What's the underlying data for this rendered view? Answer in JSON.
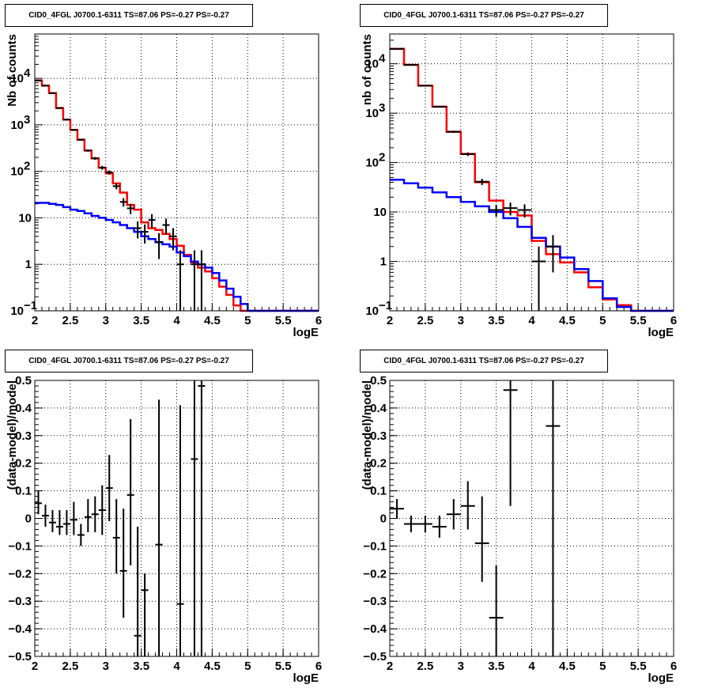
{
  "chart_data": [
    {
      "id": "p1",
      "type": "line",
      "title": "CID0_4FGL J0700.1-6311 TS=87.06 PS=-0.27 PS=-0.27",
      "xlabel": "logE",
      "ylabel": "Nb of counts",
      "xlim": [
        2,
        6
      ],
      "ylim": [
        0.1,
        90000
      ],
      "yscale": "log",
      "grid": true,
      "xticks": [
        "2",
        "2.5",
        "3",
        "3.5",
        "4",
        "4.5",
        "5",
        "5.5",
        "6"
      ],
      "yticks": [
        {
          "v": 0.1,
          "label": "10",
          "exp": "−1"
        },
        {
          "v": 1,
          "label": "1",
          "exp": ""
        },
        {
          "v": 10,
          "label": "10",
          "exp": ""
        },
        {
          "v": 100,
          "label": "10",
          "exp": "2"
        },
        {
          "v": 1000,
          "label": "10",
          "exp": "3"
        },
        {
          "v": 10000,
          "label": "10",
          "exp": "4"
        }
      ],
      "series": [
        {
          "kind": "step",
          "color": "#ff0000",
          "edges": [
            2.0,
            2.1,
            2.2,
            2.3,
            2.4,
            2.5,
            2.6,
            2.7,
            2.8,
            2.9,
            3.0,
            3.1,
            3.2,
            3.3,
            3.4,
            3.5,
            3.6,
            3.7,
            3.8,
            3.9,
            4.0,
            4.1,
            4.2,
            4.3,
            4.4,
            4.5,
            4.6,
            4.7,
            4.8,
            4.9,
            5.0,
            5.1,
            5.2,
            5.3,
            5.4,
            5.5,
            5.6,
            5.7,
            5.8,
            5.9,
            6.0
          ],
          "values": [
            9000,
            7000,
            4800,
            2300,
            1300,
            780,
            480,
            280,
            190,
            120,
            90,
            55,
            35,
            19,
            15,
            8,
            6,
            5.5,
            4.5,
            3.5,
            2.5,
            1.6,
            1.1,
            0.85,
            0.7,
            0.5,
            0.33,
            0.22,
            0.13,
            0.1,
            0.1,
            0.1,
            0.1,
            0.1,
            0.1,
            0.1,
            0.1,
            0.1,
            0.1,
            0.1
          ]
        },
        {
          "kind": "step",
          "color": "#0000ff",
          "edges": [
            2.0,
            2.1,
            2.2,
            2.3,
            2.4,
            2.5,
            2.6,
            2.7,
            2.8,
            2.9,
            3.0,
            3.1,
            3.2,
            3.3,
            3.4,
            3.5,
            3.6,
            3.7,
            3.8,
            3.9,
            4.0,
            4.1,
            4.2,
            4.3,
            4.4,
            4.5,
            4.6,
            4.7,
            4.8,
            4.9,
            5.0,
            5.1,
            5.2,
            5.3,
            5.4,
            5.5,
            5.6,
            5.7,
            5.8,
            5.9,
            6.0
          ],
          "values": [
            21,
            21,
            20,
            19,
            17,
            15,
            14,
            12.5,
            11,
            10,
            9,
            8,
            7,
            6,
            5,
            4,
            3.5,
            3,
            2.7,
            2.4,
            1.8,
            1.5,
            1.15,
            1,
            0.85,
            0.65,
            0.45,
            0.3,
            0.2,
            0.14,
            0.1,
            0.1,
            0.1,
            0.1,
            0.1,
            0.1,
            0.1,
            0.1,
            0.1,
            0.1
          ]
        },
        {
          "kind": "points",
          "color": "#000000",
          "xerr": 0.05,
          "points": [
            {
              "x": 2.05,
              "y": 9000,
              "lo": 8900,
              "hi": 9100
            },
            {
              "x": 2.15,
              "y": 7000,
              "lo": 6900,
              "hi": 7100
            },
            {
              "x": 2.25,
              "y": 4800,
              "lo": 4700,
              "hi": 4900
            },
            {
              "x": 2.35,
              "y": 2300,
              "lo": 2250,
              "hi": 2350
            },
            {
              "x": 2.45,
              "y": 1300,
              "lo": 1260,
              "hi": 1340
            },
            {
              "x": 2.55,
              "y": 780,
              "lo": 750,
              "hi": 810
            },
            {
              "x": 2.65,
              "y": 480,
              "lo": 460,
              "hi": 500
            },
            {
              "x": 2.75,
              "y": 280,
              "lo": 265,
              "hi": 295
            },
            {
              "x": 2.85,
              "y": 190,
              "lo": 176,
              "hi": 204
            },
            {
              "x": 2.95,
              "y": 120,
              "lo": 109,
              "hi": 131
            },
            {
              "x": 3.05,
              "y": 95,
              "lo": 85,
              "hi": 105
            },
            {
              "x": 3.15,
              "y": 48,
              "lo": 41,
              "hi": 55
            },
            {
              "x": 3.25,
              "y": 22,
              "lo": 17.5,
              "hi": 26.5
            },
            {
              "x": 3.35,
              "y": 16,
              "lo": 12,
              "hi": 20
            },
            {
              "x": 3.45,
              "y": 6,
              "lo": 3.6,
              "hi": 8.4
            },
            {
              "x": 3.55,
              "y": 5,
              "lo": 2.8,
              "hi": 7.2
            },
            {
              "x": 3.65,
              "y": 9,
              "lo": 6,
              "hi": 12
            },
            {
              "x": 3.75,
              "y": 3,
              "lo": 1.3,
              "hi": 4.7
            },
            {
              "x": 3.85,
              "y": 7,
              "lo": 4.4,
              "hi": 9.6
            },
            {
              "x": 3.95,
              "y": 4,
              "lo": 2,
              "hi": 6
            },
            {
              "x": 4.05,
              "y": 1,
              "lo": 0.1,
              "hi": 2
            },
            {
              "x": 4.25,
              "y": 1,
              "lo": 0.1,
              "hi": 2
            },
            {
              "x": 4.35,
              "y": 1,
              "lo": 0.1,
              "hi": 2
            }
          ]
        }
      ]
    },
    {
      "id": "p2",
      "type": "line",
      "title": "CID0_4FGL J0700.1-6311 TS=87.06 PS=-0.27 PS=-0.27",
      "xlabel": "logE",
      "ylabel": "nb of counts",
      "xlim": [
        2,
        6
      ],
      "ylim": [
        0.1,
        40000
      ],
      "yscale": "log",
      "grid": true,
      "xticks": [
        "2",
        "2.5",
        "3",
        "3.5",
        "4",
        "4.5",
        "5",
        "5.5",
        "6"
      ],
      "yticks": [
        {
          "v": 0.1,
          "label": "10",
          "exp": "−1"
        },
        {
          "v": 1,
          "label": "1",
          "exp": ""
        },
        {
          "v": 10,
          "label": "10",
          "exp": ""
        },
        {
          "v": 100,
          "label": "10",
          "exp": "2"
        },
        {
          "v": 1000,
          "label": "10",
          "exp": "3"
        },
        {
          "v": 10000,
          "label": "10",
          "exp": "4"
        }
      ],
      "series": [
        {
          "kind": "step",
          "color": "#ff0000",
          "edges": [
            2.0,
            2.2,
            2.4,
            2.6,
            2.8,
            3.0,
            3.2,
            3.4,
            3.6,
            3.8,
            4.0,
            4.2,
            4.4,
            4.6,
            4.8,
            5.0,
            5.2,
            5.4,
            5.6,
            5.8,
            6.0
          ],
          "values": [
            20000,
            9500,
            3600,
            1350,
            420,
            150,
            40,
            17,
            10,
            8.5,
            2.6,
            1.4,
            0.95,
            0.6,
            0.3,
            0.17,
            0.13,
            0.1,
            0.1,
            0.1
          ]
        },
        {
          "kind": "step",
          "color": "#0000ff",
          "edges": [
            2.0,
            2.2,
            2.4,
            2.6,
            2.8,
            3.0,
            3.2,
            3.4,
            3.6,
            3.8,
            4.0,
            4.2,
            4.4,
            4.6,
            4.8,
            5.0,
            5.2,
            5.4,
            5.6,
            5.8,
            6.0
          ],
          "values": [
            45,
            38,
            31,
            25,
            20,
            16,
            13,
            10,
            7.5,
            5,
            3,
            2,
            1.2,
            0.7,
            0.4,
            0.18,
            0.12,
            0.1,
            0.1,
            0.1
          ]
        },
        {
          "kind": "points",
          "color": "#000000",
          "xerr": 0.1,
          "points": [
            {
              "x": 2.1,
              "y": 20000,
              "lo": 19800,
              "hi": 20200
            },
            {
              "x": 2.3,
              "y": 9500,
              "lo": 9400,
              "hi": 9600
            },
            {
              "x": 2.5,
              "y": 3600,
              "lo": 3540,
              "hi": 3660
            },
            {
              "x": 2.7,
              "y": 1350,
              "lo": 1315,
              "hi": 1385
            },
            {
              "x": 2.9,
              "y": 420,
              "lo": 400,
              "hi": 440
            },
            {
              "x": 3.1,
              "y": 148,
              "lo": 136,
              "hi": 160
            },
            {
              "x": 3.3,
              "y": 41,
              "lo": 35,
              "hi": 47
            },
            {
              "x": 3.5,
              "y": 11,
              "lo": 8,
              "hi": 14
            },
            {
              "x": 3.7,
              "y": 12,
              "lo": 8.5,
              "hi": 15.5
            },
            {
              "x": 3.9,
              "y": 11,
              "lo": 7.7,
              "hi": 14.3
            },
            {
              "x": 4.1,
              "y": 1,
              "lo": 0.1,
              "hi": 2
            },
            {
              "x": 4.3,
              "y": 2,
              "lo": 0.6,
              "hi": 3.4
            }
          ]
        }
      ]
    },
    {
      "id": "p3",
      "type": "scatter",
      "title": "CID0_4FGL J0700.1-6311 TS=87.06 PS=-0.27 PS=-0.27",
      "xlabel": "logE",
      "ylabel": "(data-model)/model",
      "xlim": [
        2,
        6
      ],
      "ylim": [
        -0.5,
        0.5
      ],
      "yscale": "linear",
      "grid": true,
      "xticks": [
        "2",
        "2.5",
        "3",
        "3.5",
        "4",
        "4.5",
        "5",
        "5.5",
        "6"
      ],
      "yticks": [
        {
          "v": -0.5,
          "label": "−0.5"
        },
        {
          "v": -0.4,
          "label": "−0.4"
        },
        {
          "v": -0.3,
          "label": "−0.3"
        },
        {
          "v": -0.2,
          "label": "−0.2"
        },
        {
          "v": -0.1,
          "label": "−0.1"
        },
        {
          "v": 0,
          "label": "0"
        },
        {
          "v": 0.1,
          "label": "0.1"
        },
        {
          "v": 0.2,
          "label": "0.2"
        },
        {
          "v": 0.3,
          "label": "0.3"
        },
        {
          "v": 0.4,
          "label": "0.4"
        },
        {
          "v": 0.5,
          "label": "0.5"
        }
      ],
      "series": [
        {
          "kind": "points",
          "color": "#000000",
          "xerr": 0.05,
          "points": [
            {
              "x": 2.05,
              "y": 0.055,
              "lo": 0.015,
              "hi": 0.1
            },
            {
              "x": 2.15,
              "y": 0.01,
              "lo": -0.03,
              "hi": 0.05
            },
            {
              "x": 2.25,
              "y": -0.015,
              "lo": -0.05,
              "hi": 0.03
            },
            {
              "x": 2.35,
              "y": -0.03,
              "lo": -0.06,
              "hi": 0.03
            },
            {
              "x": 2.45,
              "y": -0.02,
              "lo": -0.06,
              "hi": 0.03
            },
            {
              "x": 2.55,
              "y": -0.005,
              "lo": -0.06,
              "hi": 0.06
            },
            {
              "x": 2.65,
              "y": -0.06,
              "lo": -0.1,
              "hi": -0.02
            },
            {
              "x": 2.75,
              "y": 0.005,
              "lo": -0.05,
              "hi": 0.07
            },
            {
              "x": 2.85,
              "y": 0.015,
              "lo": -0.05,
              "hi": 0.08
            },
            {
              "x": 2.95,
              "y": 0.03,
              "lo": -0.06,
              "hi": 0.12
            },
            {
              "x": 3.05,
              "y": 0.11,
              "lo": -0.01,
              "hi": 0.23
            },
            {
              "x": 3.15,
              "y": -0.07,
              "lo": -0.2,
              "hi": 0.07
            },
            {
              "x": 3.25,
              "y": -0.19,
              "lo": -0.36,
              "hi": 0.035
            },
            {
              "x": 3.35,
              "y": 0.085,
              "lo": -0.17,
              "hi": 0.36
            },
            {
              "x": 3.45,
              "y": -0.425,
              "lo": -0.5,
              "hi": -0.03
            },
            {
              "x": 3.55,
              "y": -0.26,
              "lo": -0.5,
              "hi": -0.2
            },
            {
              "x": 3.75,
              "y": -0.095,
              "lo": -0.5,
              "hi": 0.43
            },
            {
              "x": 4.05,
              "y": -0.31,
              "lo": -0.5,
              "hi": 0.41
            },
            {
              "x": 4.25,
              "y": 0.215,
              "lo": -0.5,
              "hi": 0.5
            },
            {
              "x": 4.35,
              "y": 0.48,
              "lo": -0.5,
              "hi": 0.5
            }
          ]
        }
      ]
    },
    {
      "id": "p4",
      "type": "scatter",
      "title": "CID0_4FGL J0700.1-6311 TS=87.06 PS=-0.27 PS=-0.27",
      "xlabel": "logE",
      "ylabel": "(data-model)/model",
      "xlim": [
        2,
        6
      ],
      "ylim": [
        -0.5,
        0.5
      ],
      "yscale": "linear",
      "grid": true,
      "xticks": [
        "2",
        "2.5",
        "3",
        "3.5",
        "4",
        "4.5",
        "5",
        "5.5",
        "6"
      ],
      "yticks": [
        {
          "v": -0.5,
          "label": "−0.5"
        },
        {
          "v": -0.4,
          "label": "−0.4"
        },
        {
          "v": -0.3,
          "label": "−0.3"
        },
        {
          "v": -0.2,
          "label": "−0.2"
        },
        {
          "v": -0.1,
          "label": "−0.1"
        },
        {
          "v": 0,
          "label": "0"
        },
        {
          "v": 0.1,
          "label": "0.1"
        },
        {
          "v": 0.2,
          "label": "0.2"
        },
        {
          "v": 0.3,
          "label": "0.3"
        },
        {
          "v": 0.4,
          "label": "0.4"
        },
        {
          "v": 0.5,
          "label": "0.5"
        }
      ],
      "series": [
        {
          "kind": "points",
          "color": "#000000",
          "xerr": 0.1,
          "points": [
            {
              "x": 2.1,
              "y": 0.035,
              "lo": 0.0,
              "hi": 0.07
            },
            {
              "x": 2.3,
              "y": -0.02,
              "lo": -0.05,
              "hi": 0.01
            },
            {
              "x": 2.5,
              "y": -0.02,
              "lo": -0.05,
              "hi": 0.01
            },
            {
              "x": 2.7,
              "y": -0.03,
              "lo": -0.07,
              "hi": 0.01
            },
            {
              "x": 2.9,
              "y": 0.015,
              "lo": -0.04,
              "hi": 0.07
            },
            {
              "x": 3.1,
              "y": 0.045,
              "lo": -0.04,
              "hi": 0.135
            },
            {
              "x": 3.3,
              "y": -0.09,
              "lo": -0.23,
              "hi": 0.08
            },
            {
              "x": 3.5,
              "y": -0.36,
              "lo": -0.5,
              "hi": -0.17
            },
            {
              "x": 3.7,
              "y": 0.465,
              "lo": 0.045,
              "hi": 0.5
            },
            {
              "x": 4.3,
              "y": 0.335,
              "lo": -0.5,
              "hi": 0.5
            }
          ]
        }
      ]
    }
  ]
}
